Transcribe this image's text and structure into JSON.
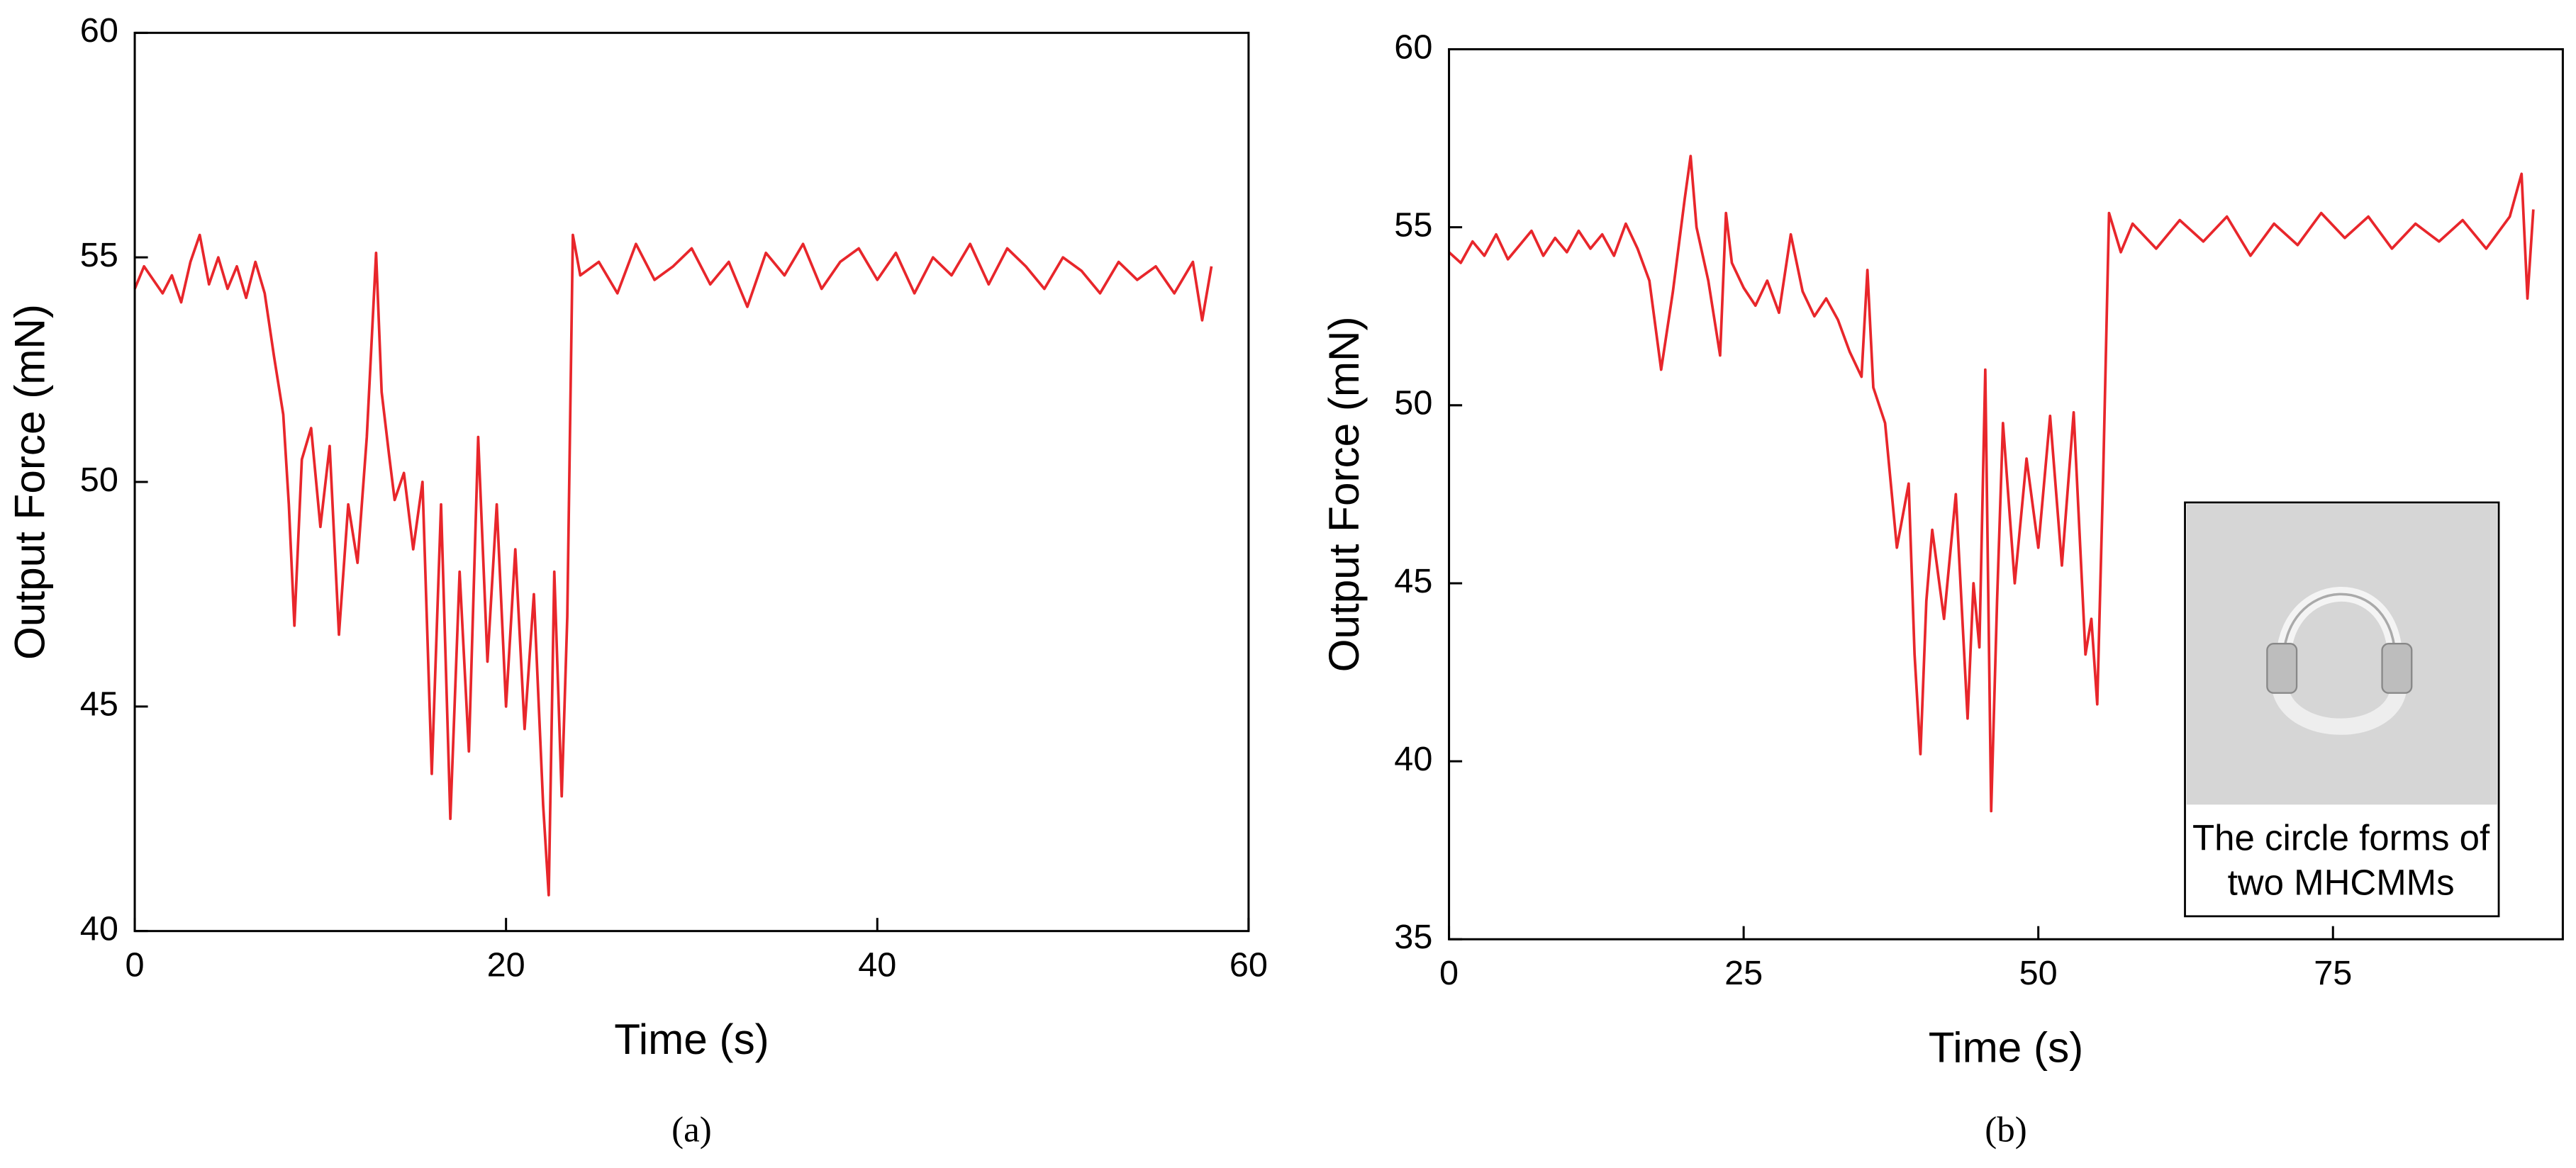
{
  "chart_data": [
    {
      "type": "line",
      "caption": "(a)",
      "xlabel": "Time (s)",
      "ylabel": "Output Force (mN)",
      "color": "#e8262b",
      "xlim": [
        0,
        60
      ],
      "xticks": [
        0,
        20,
        40,
        60
      ],
      "ylim": [
        40,
        60
      ],
      "yticks": [
        40,
        45,
        50,
        55,
        60
      ],
      "x": [
        0,
        0.5,
        1,
        1.5,
        2,
        2.5,
        3,
        3.5,
        4,
        4.5,
        5,
        5.5,
        6,
        6.5,
        7,
        7.5,
        8,
        8.3,
        8.6,
        9,
        9.5,
        10,
        10.5,
        11,
        11.5,
        12,
        12.5,
        13,
        13.3,
        13.7,
        14,
        14.5,
        15,
        15.5,
        16,
        16.5,
        17,
        17.5,
        18,
        18.5,
        19,
        19.5,
        20,
        20.5,
        21,
        21.5,
        22,
        22.3,
        22.6,
        23,
        23.3,
        23.6,
        24,
        25,
        26,
        27,
        28,
        29,
        30,
        31,
        32,
        33,
        34,
        35,
        36,
        37,
        38,
        39,
        40,
        41,
        42,
        43,
        44,
        45,
        46,
        47,
        48,
        49,
        50,
        51,
        52,
        53,
        54,
        55,
        56,
        57,
        57.5,
        58
      ],
      "values": [
        54.3,
        54.8,
        54.5,
        54.2,
        54.6,
        54.0,
        54.9,
        55.5,
        54.4,
        55.0,
        54.3,
        54.8,
        54.1,
        54.9,
        54.2,
        52.8,
        51.5,
        49.5,
        46.8,
        50.5,
        51.2,
        49.0,
        50.8,
        46.6,
        49.5,
        48.2,
        51.0,
        55.1,
        52.0,
        50.6,
        49.6,
        50.2,
        48.5,
        50.0,
        43.5,
        49.5,
        42.5,
        48.0,
        44.0,
        51.0,
        46.0,
        49.5,
        45.0,
        48.5,
        44.5,
        47.5,
        42.8,
        40.8,
        48.0,
        43.0,
        47.0,
        55.5,
        54.6,
        54.9,
        54.2,
        55.3,
        54.5,
        54.8,
        55.2,
        54.4,
        54.9,
        53.9,
        55.1,
        54.6,
        55.3,
        54.3,
        54.9,
        55.2,
        54.5,
        55.1,
        54.2,
        55.0,
        54.6,
        55.3,
        54.4,
        55.2,
        54.8,
        54.3,
        55.0,
        54.7,
        54.2,
        54.9,
        54.5,
        54.8,
        54.2,
        54.9,
        53.6,
        54.8
      ]
    },
    {
      "type": "line",
      "caption": "(b)",
      "xlabel": "Time (s)",
      "ylabel": "Output Force (mN)",
      "color": "#e8262b",
      "annotation": [
        "The circle forms of",
        "two MHCMMs"
      ],
      "xlim": [
        0,
        94.5
      ],
      "xticks": [
        0,
        25,
        50,
        75
      ],
      "ylim": [
        35,
        60
      ],
      "yticks": [
        35,
        40,
        45,
        50,
        55,
        60
      ],
      "x": [
        0,
        1,
        2,
        3,
        4,
        5,
        6,
        7,
        8,
        9,
        10,
        11,
        12,
        13,
        14,
        15,
        16,
        17,
        18,
        19,
        20,
        20.5,
        21,
        22,
        23,
        23.5,
        24,
        25,
        26,
        27,
        28,
        29,
        30,
        31,
        32,
        33,
        34,
        35,
        35.5,
        36,
        37,
        38,
        39,
        39.5,
        40,
        40.5,
        41,
        42,
        43,
        44,
        44.5,
        45,
        45.5,
        46,
        46.5,
        47,
        48,
        49,
        50,
        51,
        52,
        53,
        54,
        54.5,
        55,
        55.5,
        56,
        57,
        58,
        60,
        62,
        64,
        66,
        68,
        70,
        72,
        74,
        76,
        78,
        80,
        82,
        84,
        86,
        88,
        90,
        91,
        91.5,
        92
      ],
      "values": [
        54.3,
        54.0,
        54.6,
        54.2,
        54.8,
        54.1,
        54.5,
        54.9,
        54.2,
        54.7,
        54.3,
        54.9,
        54.4,
        54.8,
        54.2,
        55.1,
        54.4,
        53.5,
        51.0,
        53.2,
        55.8,
        57.0,
        55.0,
        53.5,
        51.4,
        55.4,
        54.0,
        53.3,
        52.8,
        53.5,
        52.6,
        54.8,
        53.2,
        52.5,
        53.0,
        52.4,
        51.5,
        50.8,
        53.8,
        50.5,
        49.5,
        46.0,
        47.8,
        43.0,
        40.2,
        44.5,
        46.5,
        44.0,
        47.5,
        41.2,
        45.0,
        43.2,
        51.0,
        38.6,
        44.5,
        49.5,
        45.0,
        48.5,
        46.0,
        49.7,
        45.5,
        49.8,
        43.0,
        44.0,
        41.6,
        48.0,
        55.4,
        54.3,
        55.1,
        54.4,
        55.2,
        54.6,
        55.3,
        54.2,
        55.1,
        54.5,
        55.4,
        54.7,
        55.3,
        54.4,
        55.1,
        54.6,
        55.2,
        54.4,
        55.3,
        56.5,
        53.0,
        55.5
      ]
    }
  ]
}
